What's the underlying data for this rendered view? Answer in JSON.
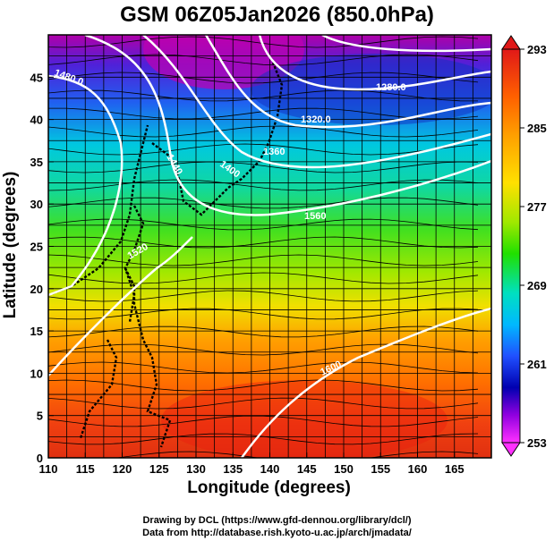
{
  "title": "GSM 06Z05Jan2026 (850.0hPa)",
  "axes": {
    "xlabel": "Longitude (degrees)",
    "ylabel": "Latitude  (degrees)",
    "xticks": [
      "110",
      "115",
      "120",
      "125",
      "130",
      "135",
      "140",
      "145",
      "150",
      "155",
      "160",
      "165"
    ],
    "yticks": [
      "0",
      "5",
      "10",
      "15",
      "20",
      "25",
      "30",
      "35",
      "40",
      "45"
    ]
  },
  "colorbar": {
    "ticks": [
      "293",
      "285",
      "277",
      "269",
      "261",
      "253"
    ],
    "colors": [
      "#e03018",
      "#ff9a00",
      "#ffff00",
      "#30e000",
      "#00e0c0",
      "#00c8ff",
      "#2040ff",
      "#0000b0",
      "#a000e0",
      "#ff30ff"
    ]
  },
  "contour_labels": [
    "1480.0",
    "1280.0",
    "1320.0",
    "1360",
    "1400",
    "1440",
    "1520",
    "1560",
    "1600"
  ],
  "credit_lines": [
    "Drawing by DCL (https://www.gfd-dennou.org/library/dcl/)",
    "Data from http://database.rish.kyoto-u.ac.jp/arch/jmadata/"
  ]
}
